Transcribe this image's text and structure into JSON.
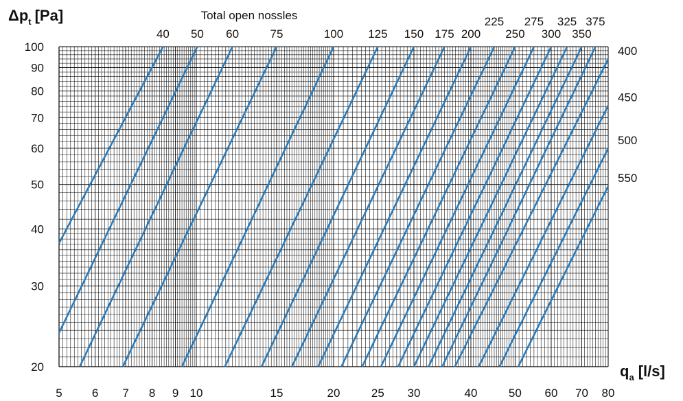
{
  "chart_data": {
    "type": "line",
    "title": "Total open nossles",
    "ylabel": {
      "main": "Δp",
      "sub": "t",
      "unit": "[Pa]"
    },
    "xlabel": {
      "main": "q",
      "sub": "a",
      "unit": "[l/s]"
    },
    "x_scale": "log",
    "y_scale": "log",
    "xlim": [
      5,
      80
    ],
    "ylim": [
      20,
      100
    ],
    "x_ticks": [
      {
        "value": 5,
        "label": "5"
      },
      {
        "value": 6,
        "label": "6"
      },
      {
        "value": 7,
        "label": "7"
      },
      {
        "value": 8,
        "label": "8"
      },
      {
        "value": 9,
        "label": "9"
      },
      {
        "value": 10,
        "label": "10"
      },
      {
        "value": 15,
        "label": "15"
      },
      {
        "value": 20,
        "label": "20"
      },
      {
        "value": 25,
        "label": "25"
      },
      {
        "value": 30,
        "label": "30"
      },
      {
        "value": 40,
        "label": "40"
      },
      {
        "value": 50,
        "label": "50"
      },
      {
        "value": 60,
        "label": "60"
      },
      {
        "value": 70,
        "label": "70"
      },
      {
        "value": 80,
        "label": "80"
      }
    ],
    "y_ticks": [
      {
        "value": 20,
        "label": "20"
      },
      {
        "value": 30,
        "label": "30"
      },
      {
        "value": 40,
        "label": "40"
      },
      {
        "value": 50,
        "label": "50"
      },
      {
        "value": 60,
        "label": "60"
      },
      {
        "value": 70,
        "label": "70"
      },
      {
        "value": 80,
        "label": "80"
      },
      {
        "value": 90,
        "label": "90"
      },
      {
        "value": 100,
        "label": "100"
      }
    ],
    "grid": true,
    "line_color": "#2a7ab9",
    "series": [
      {
        "name": "40",
        "points": [
          [
            5.0,
            37.2
          ],
          [
            8.45,
            100
          ]
        ]
      },
      {
        "name": "50",
        "points": [
          [
            5.0,
            23.7
          ],
          [
            10.05,
            100
          ]
        ]
      },
      {
        "name": "60",
        "points": [
          [
            5.55,
            20
          ],
          [
            12.0,
            100
          ]
        ]
      },
      {
        "name": "75",
        "points": [
          [
            6.9,
            20
          ],
          [
            15.0,
            100
          ]
        ]
      },
      {
        "name": "100",
        "points": [
          [
            9.3,
            20
          ],
          [
            20.0,
            100
          ]
        ]
      },
      {
        "name": "125",
        "points": [
          [
            11.55,
            20
          ],
          [
            25.0,
            100
          ]
        ]
      },
      {
        "name": "150",
        "points": [
          [
            13.9,
            20
          ],
          [
            30.0,
            100
          ]
        ]
      },
      {
        "name": "175",
        "points": [
          [
            16.2,
            20
          ],
          [
            35.0,
            100
          ]
        ]
      },
      {
        "name": "200",
        "points": [
          [
            18.5,
            20
          ],
          [
            40.0,
            100
          ]
        ]
      },
      {
        "name": "225",
        "points": [
          [
            20.8,
            20
          ],
          [
            45.0,
            100
          ]
        ]
      },
      {
        "name": "250",
        "points": [
          [
            23.1,
            20
          ],
          [
            50.0,
            100
          ]
        ]
      },
      {
        "name": "275",
        "points": [
          [
            25.4,
            20
          ],
          [
            55.0,
            100
          ]
        ]
      },
      {
        "name": "300",
        "points": [
          [
            27.7,
            20
          ],
          [
            60.0,
            100
          ]
        ]
      },
      {
        "name": "325",
        "points": [
          [
            30.0,
            20
          ],
          [
            65.0,
            100
          ]
        ]
      },
      {
        "name": "350",
        "points": [
          [
            32.3,
            20
          ],
          [
            70.0,
            100
          ]
        ]
      },
      {
        "name": "375",
        "points": [
          [
            34.6,
            20
          ],
          [
            75.0,
            100
          ]
        ]
      },
      {
        "name": "400",
        "points": [
          [
            36.9,
            20
          ],
          [
            80.0,
            94.0
          ]
        ]
      },
      {
        "name": "450",
        "points": [
          [
            41.6,
            20
          ],
          [
            80.0,
            74.4
          ]
        ]
      },
      {
        "name": "500",
        "points": [
          [
            46.2,
            20
          ],
          [
            80.0,
            60.0
          ]
        ]
      },
      {
        "name": "550",
        "points": [
          [
            50.8,
            20
          ],
          [
            80.0,
            49.6
          ]
        ]
      }
    ],
    "top_labels": [
      {
        "name": "40",
        "row": 2
      },
      {
        "name": "50",
        "row": 2
      },
      {
        "name": "60",
        "row": 2
      },
      {
        "name": "75",
        "row": 2
      },
      {
        "name": "100",
        "row": 2
      },
      {
        "name": "125",
        "row": 2
      },
      {
        "name": "150",
        "row": 2
      },
      {
        "name": "175",
        "row": 2
      },
      {
        "name": "200",
        "row": 2
      },
      {
        "name": "225",
        "row": 1
      },
      {
        "name": "250",
        "row": 2
      },
      {
        "name": "275",
        "row": 1
      },
      {
        "name": "300",
        "row": 2
      },
      {
        "name": "325",
        "row": 1
      },
      {
        "name": "350",
        "row": 2
      },
      {
        "name": "375",
        "row": 1
      }
    ],
    "right_labels": [
      "400",
      "450",
      "500",
      "550"
    ]
  }
}
